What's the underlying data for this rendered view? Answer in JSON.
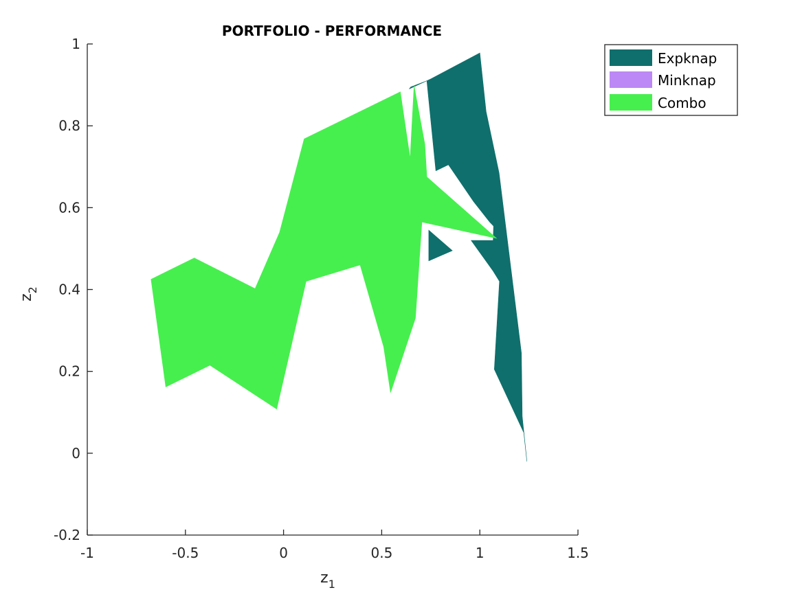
{
  "chart_data": {
    "type": "area",
    "title": "PORTFOLIO - PERFORMANCE",
    "xlabel": "z",
    "xlabel_sub": "1",
    "ylabel": "z",
    "ylabel_sub": "2",
    "xlim": [
      -1,
      1.5
    ],
    "ylim": [
      -0.2,
      1
    ],
    "xticks": [
      -1,
      -0.5,
      0,
      0.5,
      1,
      1.5
    ],
    "xtick_labels": [
      "-1",
      "-0.5",
      "0",
      "0.5",
      "1",
      "1.5"
    ],
    "yticks": [
      -0.2,
      0,
      0.2,
      0.4,
      0.6,
      0.8,
      1
    ],
    "ytick_labels": [
      "-0.2",
      "0",
      "0.2",
      "0.4",
      "0.6",
      "0.8",
      "1"
    ],
    "grid": false,
    "legend_position": "top-right",
    "series": [
      {
        "name": "Expknap",
        "color": "#0F6F6C",
        "regions": [
          [
            [
              0.73,
              0.91
            ],
            [
              0.752,
              0.915
            ],
            [
              1.0,
              0.978
            ],
            [
              1.032,
              0.835
            ],
            [
              1.098,
              0.685
            ],
            [
              1.212,
              0.245
            ],
            [
              1.216,
              0.09
            ],
            [
              1.24,
              -0.02
            ],
            [
              1.224,
              0.05
            ],
            [
              1.074,
              0.205
            ],
            [
              1.1,
              0.42
            ],
            [
              1.068,
              0.445
            ],
            [
              0.956,
              0.52
            ],
            [
              1.068,
              0.52
            ],
            [
              1.07,
              0.555
            ],
            [
              1.05,
              0.565
            ],
            [
              0.968,
              0.615
            ],
            [
              0.84,
              0.705
            ],
            [
              0.776,
              0.69
            ]
          ],
          [
            [
              0.74,
              0.545
            ],
            [
              0.86,
              0.495
            ],
            [
              0.74,
              0.47
            ]
          ],
          [
            [
              0.64,
              0.89
            ],
            [
              0.73,
              0.91
            ],
            [
              0.648,
              0.895
            ]
          ]
        ]
      },
      {
        "name": "Minknap",
        "color": "#BB88F5",
        "regions": []
      },
      {
        "name": "Combo",
        "color": "#46EF4E",
        "regions": [
          [
            [
              -0.675,
              0.425
            ],
            [
              -0.455,
              0.477
            ],
            [
              -0.145,
              0.402
            ],
            [
              -0.02,
              0.54
            ],
            [
              0.105,
              0.768
            ],
            [
              0.595,
              0.883
            ],
            [
              0.645,
              0.72
            ],
            [
              0.665,
              0.898
            ],
            [
              0.72,
              0.755
            ],
            [
              0.73,
              0.675
            ],
            [
              1.085,
              0.525
            ],
            [
              0.705,
              0.565
            ],
            [
              0.672,
              0.33
            ],
            [
              0.545,
              0.148
            ],
            [
              0.51,
              0.26
            ],
            [
              0.39,
              0.46
            ],
            [
              0.115,
              0.42
            ],
            [
              -0.035,
              0.108
            ],
            [
              -0.375,
              0.215
            ],
            [
              -0.6,
              0.162
            ]
          ]
        ]
      }
    ]
  }
}
